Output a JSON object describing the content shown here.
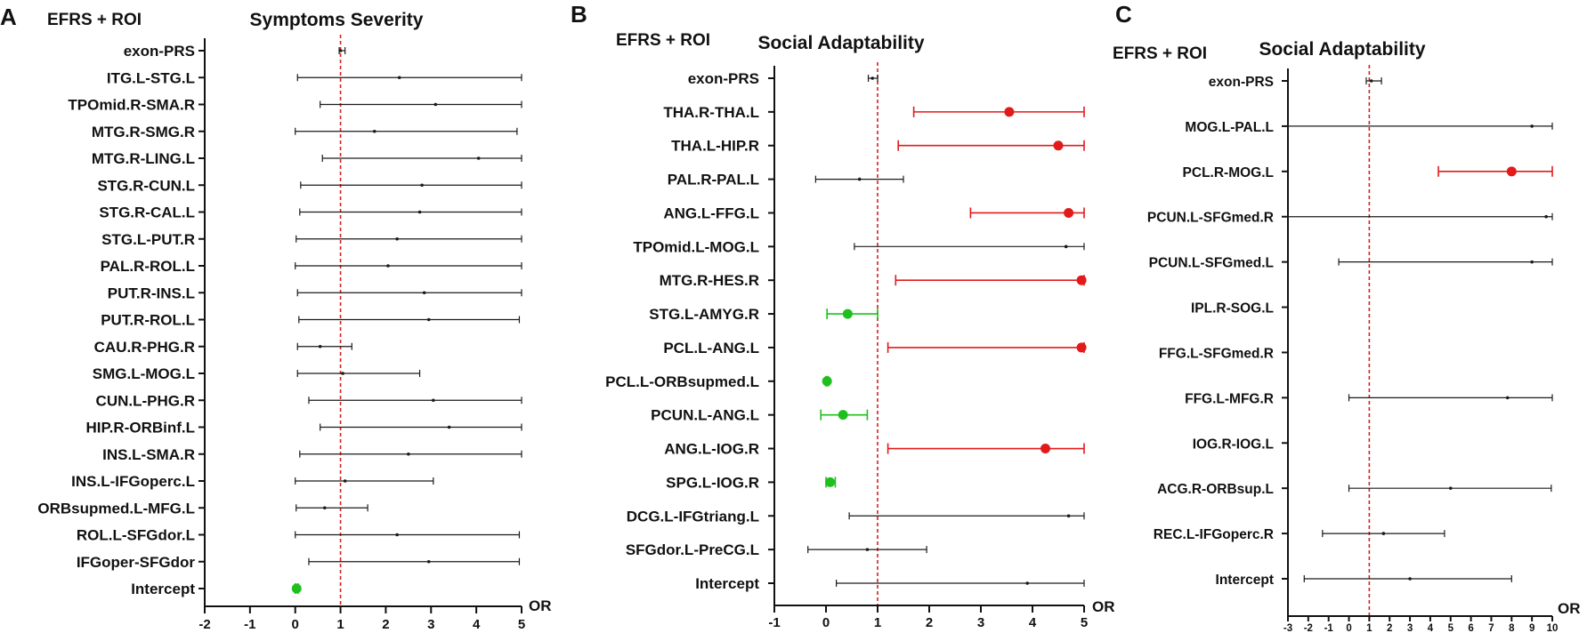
{
  "colors": {
    "black": "#1a1a1a",
    "red": "#e21a1a",
    "green": "#1fbf1f",
    "refline": "#d42020"
  },
  "chart_data": [
    {
      "type": "forest",
      "panel": "A",
      "header_left": "EFRS + ROI",
      "title": "Symptoms Severity",
      "xlabel": "OR",
      "xlim": [
        -2,
        5
      ],
      "xticks": [
        -2,
        -1,
        0,
        1,
        2,
        3,
        4,
        5
      ],
      "reference_line": 1,
      "rows": [
        {
          "label": "exon-PRS",
          "or": 1.0,
          "low": 0.97,
          "high": 1.1,
          "color": "black"
        },
        {
          "label": "ITG.L-STG.L",
          "or": 2.3,
          "low": 0.05,
          "high": 5,
          "color": "black"
        },
        {
          "label": "TPOmid.R-SMA.R",
          "or": 3.1,
          "low": 0.55,
          "high": 5,
          "color": "black"
        },
        {
          "label": "MTG.R-SMG.R",
          "or": 1.75,
          "low": 0.0,
          "high": 4.9,
          "color": "black"
        },
        {
          "label": "MTG.R-LING.L",
          "or": 4.05,
          "low": 0.6,
          "high": 5,
          "color": "black"
        },
        {
          "label": "STG.R-CUN.L",
          "or": 2.8,
          "low": 0.12,
          "high": 5,
          "color": "black"
        },
        {
          "label": "STG.R-CAL.L",
          "or": 2.75,
          "low": 0.1,
          "high": 5,
          "color": "black"
        },
        {
          "label": "STG.L-PUT.R",
          "or": 2.25,
          "low": 0.02,
          "high": 5,
          "color": "black"
        },
        {
          "label": "PAL.R-ROL.L",
          "or": 2.05,
          "low": 0.0,
          "high": 5,
          "color": "black"
        },
        {
          "label": "PUT.R-INS.L",
          "or": 2.85,
          "low": 0.05,
          "high": 5,
          "color": "black"
        },
        {
          "label": "PUT.R-ROL.L",
          "or": 2.95,
          "low": 0.08,
          "high": 4.95,
          "color": "black"
        },
        {
          "label": "CAU.R-PHG.R",
          "or": 0.55,
          "low": 0.05,
          "high": 1.25,
          "color": "black"
        },
        {
          "label": "SMG.L-MOG.L",
          "or": 1.05,
          "low": 0.05,
          "high": 2.75,
          "color": "black"
        },
        {
          "label": "CUN.L-PHG.R",
          "or": 3.05,
          "low": 0.3,
          "high": 5,
          "color": "black"
        },
        {
          "label": "HIP.R-ORBinf.L",
          "or": 3.4,
          "low": 0.55,
          "high": 5,
          "color": "black"
        },
        {
          "label": "INS.L-SMA.R",
          "or": 2.5,
          "low": 0.1,
          "high": 5,
          "color": "black"
        },
        {
          "label": "INS.L-IFGoperc.L",
          "or": 1.1,
          "low": 0.0,
          "high": 3.05,
          "color": "black"
        },
        {
          "label": "ORBsupmed.L-MFG.L",
          "or": 0.65,
          "low": 0.02,
          "high": 1.6,
          "color": "black"
        },
        {
          "label": "ROL.L-SFGdor.L",
          "or": 2.25,
          "low": 0.0,
          "high": 4.95,
          "color": "black"
        },
        {
          "label": "IFGoper-SFGdor",
          "or": 2.95,
          "low": 0.3,
          "high": 4.95,
          "color": "black"
        },
        {
          "label": "Intercept",
          "or": 0.03,
          "low": 0.0,
          "high": 0.06,
          "color": "green"
        }
      ]
    },
    {
      "type": "forest",
      "panel": "B",
      "header_left": "EFRS + ROI",
      "title": "Social Adaptability",
      "xlabel": "OR",
      "xlim": [
        -1,
        5
      ],
      "xticks": [
        -1,
        0,
        1,
        2,
        3,
        4,
        5
      ],
      "reference_line": 1,
      "rows": [
        {
          "label": "exon-PRS",
          "or": 0.9,
          "low": 0.82,
          "high": 1.0,
          "color": "black"
        },
        {
          "label": "THA.R-THA.L",
          "or": 3.55,
          "low": 1.7,
          "high": 5,
          "color": "red"
        },
        {
          "label": "THA.L-HIP.R",
          "or": 4.5,
          "low": 1.4,
          "high": 5,
          "color": "red"
        },
        {
          "label": "PAL.R-PAL.L",
          "or": 0.65,
          "low": -0.2,
          "high": 1.5,
          "color": "black"
        },
        {
          "label": "ANG.L-FFG.L",
          "or": 4.7,
          "low": 2.8,
          "high": 5,
          "color": "red"
        },
        {
          "label": "TPOmid.L-MOG.L",
          "or": 4.65,
          "low": 0.55,
          "high": 5,
          "color": "black"
        },
        {
          "label": "MTG.R-HES.R",
          "or": 4.95,
          "low": 1.35,
          "high": 5,
          "color": "red"
        },
        {
          "label": "STG.L-AMYG.R",
          "or": 0.42,
          "low": 0.02,
          "high": 1.0,
          "color": "green"
        },
        {
          "label": "PCL.L-ANG.L",
          "or": 4.95,
          "low": 1.2,
          "high": 5,
          "color": "red"
        },
        {
          "label": "PCL.L-ORBsupmed.L",
          "or": 0.02,
          "low": 0.0,
          "high": 0.04,
          "color": "green"
        },
        {
          "label": "PCUN.L-ANG.L",
          "or": 0.33,
          "low": -0.1,
          "high": 0.8,
          "color": "green"
        },
        {
          "label": "ANG.L-IOG.R",
          "or": 4.25,
          "low": 1.2,
          "high": 5,
          "color": "red"
        },
        {
          "label": "SPG.L-IOG.R",
          "or": 0.08,
          "low": 0.0,
          "high": 0.18,
          "color": "green"
        },
        {
          "label": "DCG.L-IFGtriang.L",
          "or": 4.7,
          "low": 0.45,
          "high": 5,
          "color": "black"
        },
        {
          "label": "SFGdor.L-PreCG.L",
          "or": 0.8,
          "low": -0.35,
          "high": 1.95,
          "color": "black"
        },
        {
          "label": "Intercept",
          "or": 3.9,
          "low": 0.2,
          "high": 5,
          "color": "black"
        }
      ]
    },
    {
      "type": "forest",
      "panel": "C",
      "header_left": "EFRS + ROI",
      "title": "Social Adaptability",
      "xlabel": "OR",
      "xlim": [
        -3,
        10
      ],
      "xticks": [
        -3,
        -2,
        -1,
        0,
        1,
        2,
        3,
        4,
        5,
        6,
        7,
        8,
        9,
        10
      ],
      "reference_line": 1,
      "rows": [
        {
          "label": "exon-PRS",
          "or": 1.1,
          "low": 0.85,
          "high": 1.6,
          "color": "black"
        },
        {
          "label": "MOG.L-PAL.L",
          "or": 9.0,
          "low": -3,
          "high": 10,
          "color": "black"
        },
        {
          "label": "PCL.R-MOG.L",
          "or": 8.0,
          "low": 4.4,
          "high": 10,
          "color": "red"
        },
        {
          "label": "PCUN.L-SFGmed.R",
          "or": 9.7,
          "low": -3,
          "high": 10,
          "color": "black"
        },
        {
          "label": "PCUN.L-SFGmed.L",
          "or": 9.0,
          "low": -0.5,
          "high": 10,
          "color": "black"
        },
        {
          "label": "IPL.R-SOG.L",
          "or": null,
          "low": null,
          "high": null,
          "color": "black"
        },
        {
          "label": "FFG.L-SFGmed.R",
          "or": null,
          "low": null,
          "high": null,
          "color": "black"
        },
        {
          "label": "FFG.L-MFG.R",
          "or": 7.8,
          "low": 0.0,
          "high": 10,
          "color": "black"
        },
        {
          "label": "IOG.R-IOG.L",
          "or": null,
          "low": null,
          "high": null,
          "color": "black"
        },
        {
          "label": "ACG.R-ORBsup.L",
          "or": 5.0,
          "low": 0.0,
          "high": 9.95,
          "color": "black"
        },
        {
          "label": "REC.L-IFGoperc.R",
          "or": 1.7,
          "low": -1.3,
          "high": 4.7,
          "color": "black"
        },
        {
          "label": "Intercept",
          "or": 3.0,
          "low": -2.2,
          "high": 8.0,
          "color": "black"
        }
      ]
    }
  ]
}
